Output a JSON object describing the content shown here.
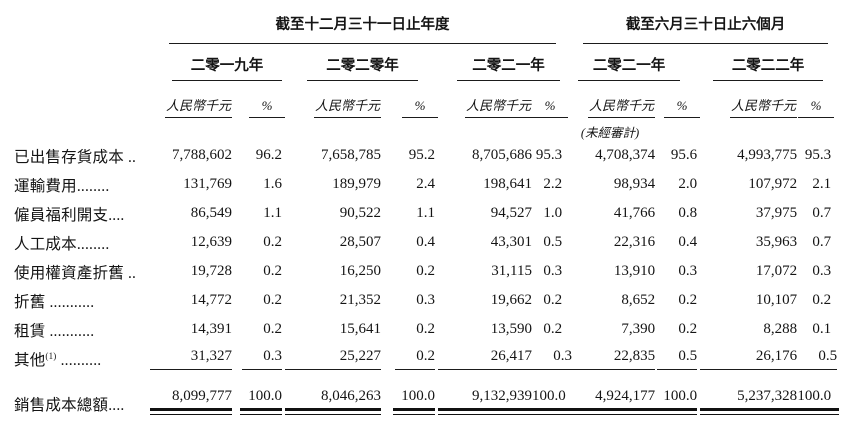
{
  "table": {
    "group_headers": [
      {
        "title": "截至十二月三十一日止年度"
      },
      {
        "title": "截至六月三十日止六個月"
      }
    ],
    "periods": [
      {
        "year": "二零一九年",
        "unit": "人民幣千元",
        "pct": "%"
      },
      {
        "year": "二零二零年",
        "unit": "人民幣千元",
        "pct": "%"
      },
      {
        "year": "二零二一年",
        "unit": "人民幣千元",
        "pct": "%"
      },
      {
        "year": "二零二一年",
        "unit": "人民幣千元",
        "pct": "%"
      },
      {
        "year": "二零二二年",
        "unit": "人民幣千元",
        "pct": "%"
      }
    ],
    "unaudited_note": "(未經審計)",
    "rows": [
      {
        "label": "已出售存貨成本",
        "sup": "",
        "leader": " ..",
        "values": [
          "7,788,602",
          "96.2",
          "7,658,785",
          "95.2",
          "8,705,686",
          "95.3",
          "4,708,374",
          "95.6",
          "4,993,775",
          "95.3"
        ]
      },
      {
        "label": "運輸費用",
        "sup": "",
        "leader": "........",
        "values": [
          "131,769",
          "1.6",
          "189,979",
          "2.4",
          "198,641",
          "2.2",
          "98,934",
          "2.0",
          "107,972",
          "2.1"
        ]
      },
      {
        "label": "僱員福利開支",
        "sup": "",
        "leader": "....",
        "values": [
          "86,549",
          "1.1",
          "90,522",
          "1.1",
          "94,527",
          "1.0",
          "41,766",
          "0.8",
          "37,975",
          "0.7"
        ]
      },
      {
        "label": "人工成本",
        "sup": "",
        "leader": "........",
        "values": [
          "12,639",
          "0.2",
          "28,507",
          "0.4",
          "43,301",
          "0.5",
          "22,316",
          "0.4",
          "35,963",
          "0.7"
        ]
      },
      {
        "label": "使用權資產折舊",
        "sup": "",
        "leader": " ..",
        "values": [
          "19,728",
          "0.2",
          "16,250",
          "0.2",
          "31,115",
          "0.3",
          "13,910",
          "0.3",
          "17,072",
          "0.3"
        ]
      },
      {
        "label": "折舊",
        "sup": "",
        "leader": " ...........",
        "values": [
          "14,772",
          "0.2",
          "21,352",
          "0.3",
          "19,662",
          "0.2",
          "8,652",
          "0.2",
          "10,107",
          "0.2"
        ]
      },
      {
        "label": "租賃",
        "sup": "",
        "leader": " ...........",
        "values": [
          "14,391",
          "0.2",
          "15,641",
          "0.2",
          "13,590",
          "0.2",
          "7,390",
          "0.2",
          "8,288",
          "0.1"
        ]
      },
      {
        "label": "其他",
        "sup": "(1)",
        "leader": " ..........",
        "rule_below": true,
        "values": [
          "31,327",
          "0.3",
          "25,227",
          "0.2",
          "26,417",
          "0.3",
          "22,835",
          "0.5",
          "26,176",
          "0.5"
        ]
      }
    ],
    "total_row": {
      "label": "銷售成本總額",
      "sup": "",
      "leader": "....",
      "values": [
        "8,099,777",
        "100.0",
        "8,046,263",
        "100.0",
        "9,132,939",
        "100.0",
        "4,924,177",
        "100.0",
        "5,237,328",
        "100.0"
      ]
    }
  }
}
